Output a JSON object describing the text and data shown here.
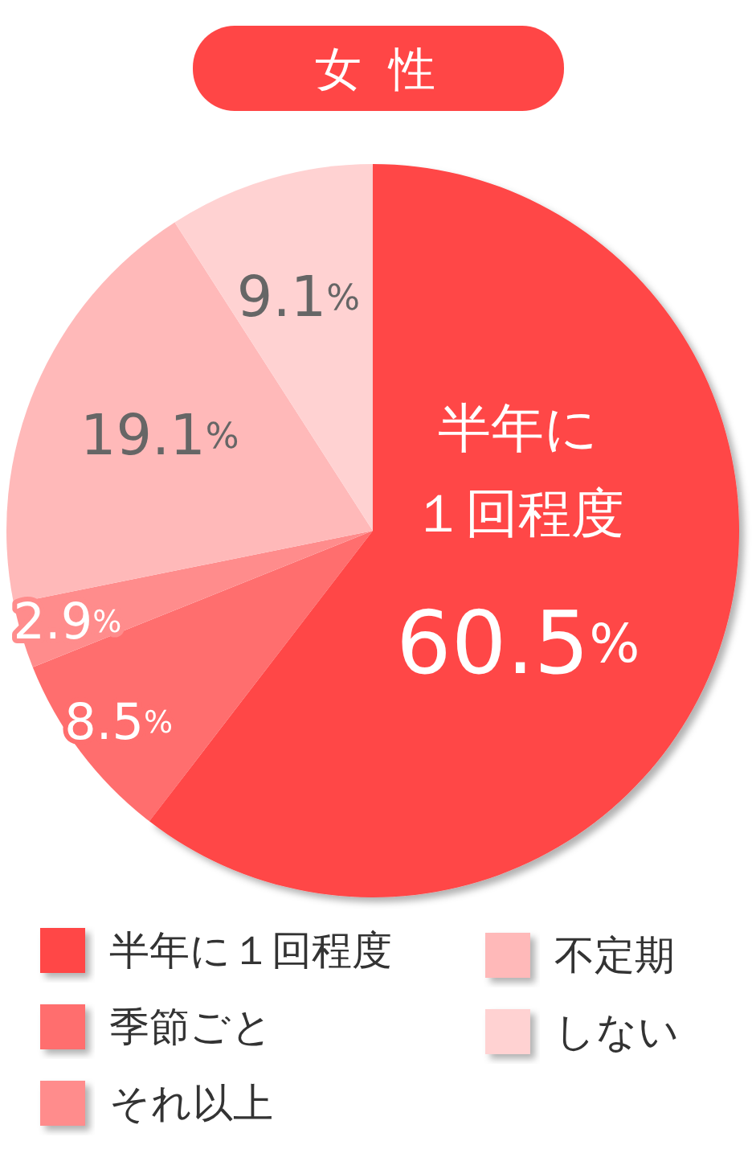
{
  "chart_data": {
    "type": "pie",
    "title": "女 性",
    "categories": [
      "半年に１回程度",
      "季節ごと",
      "それ以上",
      "不定期",
      "しない"
    ],
    "values": [
      60.5,
      8.5,
      2.9,
      19.1,
      9.1
    ],
    "colors": [
      "#ff4646",
      "#ff6e6e",
      "#ff8c8c",
      "#ffb9b9",
      "#ffd2d2"
    ],
    "value_labels": [
      "60.5%",
      "8.5%",
      "2.9%",
      "19.1%",
      "9.1%"
    ],
    "annotations": [
      {
        "text": "半年に１回程度",
        "x": "半年に１回程度"
      }
    ],
    "legend": "bottom"
  }
}
